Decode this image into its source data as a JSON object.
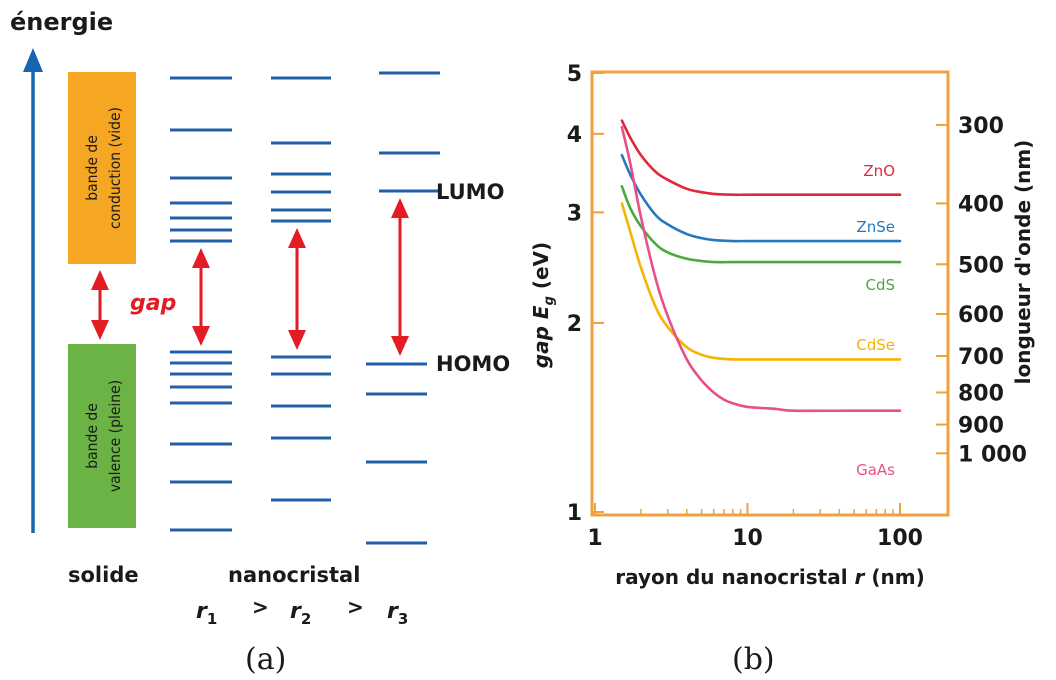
{
  "panel_a": {
    "energy_label": "énergie",
    "conduction_band": [
      "bande de",
      "conduction (vide)"
    ],
    "valence_band": [
      "bande de",
      "valence (pleine)"
    ],
    "gap_label": "gap",
    "lumo_label": "LUMO",
    "homo_label": "HOMO",
    "solid_label": "solide",
    "nanocrystal_label": "nanocristal",
    "radius_symbol": "r",
    "radius_subscripts": [
      "1",
      "2",
      "3"
    ],
    "greater_than": ">",
    "caption": "(a)"
  },
  "panel_b": {
    "caption": "(b)",
    "colors": {
      "frame": "#f0a040"
    }
  },
  "chart_data": {
    "type": "line",
    "xlabel": "rayon du nanocristal r (nm)",
    "ylabel": "gap E_g (eV)",
    "ylabel_parts": [
      "gap ",
      "E",
      "g",
      " (eV)"
    ],
    "y2label": "longueur d'onde (nm)",
    "x_scale": "log",
    "y_scale": "log",
    "xlim": [
      1,
      160
    ],
    "ylim": [
      1,
      5
    ],
    "x_ticks": [
      1,
      10,
      100
    ],
    "x_tick_labels": [
      "1",
      "10",
      "100"
    ],
    "y_ticks": [
      1,
      2,
      3,
      4,
      5
    ],
    "y_tick_labels": [
      "1",
      "2",
      "3",
      "4",
      "5"
    ],
    "y2_ticks_nm": [
      300,
      400,
      500,
      600,
      700,
      800,
      900,
      1000
    ],
    "y2_tick_labels": [
      "300",
      "400",
      "500",
      "600",
      "700",
      "800",
      "900",
      "1 000"
    ],
    "series": [
      {
        "name": "ZnO",
        "color": "#e0283a",
        "x": [
          1.5,
          1.7,
          2,
          2.5,
          3,
          4,
          5,
          6,
          8,
          10,
          20,
          50,
          100
        ],
        "y": [
          4.2,
          3.95,
          3.7,
          3.48,
          3.38,
          3.27,
          3.23,
          3.21,
          3.2,
          3.2,
          3.2,
          3.2,
          3.2
        ]
      },
      {
        "name": "ZnSe",
        "color": "#2878c0",
        "x": [
          1.5,
          1.7,
          2,
          2.5,
          3,
          4,
          5,
          6,
          8,
          10,
          20,
          50,
          100
        ],
        "y": [
          3.7,
          3.45,
          3.2,
          2.97,
          2.87,
          2.77,
          2.73,
          2.71,
          2.7,
          2.7,
          2.7,
          2.7,
          2.7
        ]
      },
      {
        "name": "CdS",
        "color": "#4caa3c",
        "x": [
          1.5,
          1.7,
          2,
          2.5,
          3,
          4,
          5,
          6,
          8,
          10,
          20,
          50,
          100
        ],
        "y": [
          3.3,
          3.05,
          2.85,
          2.67,
          2.59,
          2.53,
          2.51,
          2.5,
          2.5,
          2.5,
          2.5,
          2.5,
          2.5
        ]
      },
      {
        "name": "CdSe",
        "color": "#f5b400",
        "x": [
          1.5,
          1.7,
          2,
          2.5,
          3,
          4,
          5,
          6,
          8,
          10,
          20,
          50,
          100
        ],
        "y": [
          3.1,
          2.8,
          2.45,
          2.12,
          1.97,
          1.83,
          1.78,
          1.76,
          1.75,
          1.75,
          1.75,
          1.75,
          1.75
        ]
      },
      {
        "name": "GaAs",
        "color": "#e8508a",
        "x": [
          1.5,
          1.7,
          2,
          2.5,
          3,
          4,
          5,
          6,
          7,
          8,
          10,
          15,
          20,
          50,
          100
        ],
        "y": [
          4.1,
          3.6,
          2.95,
          2.35,
          2.05,
          1.75,
          1.62,
          1.55,
          1.51,
          1.49,
          1.47,
          1.46,
          1.45,
          1.45,
          1.45
        ]
      }
    ]
  }
}
